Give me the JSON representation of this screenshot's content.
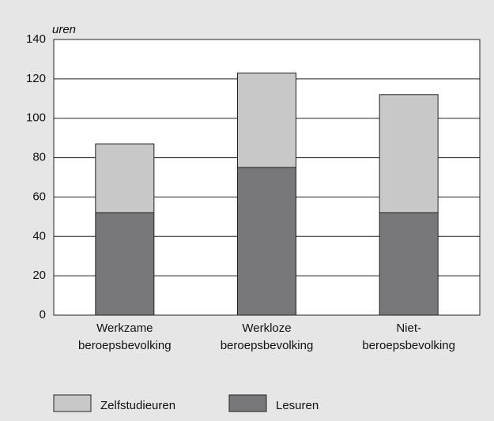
{
  "chart_data": {
    "type": "stacked_bar",
    "y_label": "uren",
    "categories": [
      [
        "Werkzame",
        "beroepsbevolking"
      ],
      [
        "Werkloze",
        "beroepsbevolking"
      ],
      [
        "Niet-",
        "beroepsbevolking"
      ]
    ],
    "series": [
      {
        "name": "Lesuren",
        "color": "#78787a",
        "values": [
          52,
          75,
          52
        ]
      },
      {
        "name": "Zelfstudieuren",
        "color": "#c8c8c8",
        "values": [
          35,
          48,
          60
        ]
      }
    ],
    "ylim": [
      0,
      140
    ],
    "yticks": [
      0,
      20,
      40,
      60,
      80,
      100,
      120,
      140
    ],
    "grid": true
  }
}
